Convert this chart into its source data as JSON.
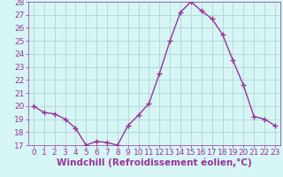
{
  "x": [
    0,
    1,
    2,
    3,
    4,
    5,
    6,
    7,
    8,
    9,
    10,
    11,
    12,
    13,
    14,
    15,
    16,
    17,
    18,
    19,
    20,
    21,
    22,
    23
  ],
  "y": [
    20.0,
    19.5,
    19.4,
    19.0,
    18.3,
    17.0,
    17.3,
    17.2,
    17.0,
    18.5,
    19.3,
    20.2,
    22.5,
    25.0,
    27.2,
    28.0,
    27.3,
    26.7,
    25.5,
    23.5,
    21.6,
    19.2,
    19.0,
    18.5
  ],
  "line_color": "#993399",
  "marker": "+",
  "marker_size": 4,
  "linewidth": 1.0,
  "xlabel": "Windchill (Refroidissement éolien,°C)",
  "ylim": [
    17,
    28
  ],
  "xlim": [
    -0.5,
    23.5
  ],
  "yticks": [
    17,
    18,
    19,
    20,
    21,
    22,
    23,
    24,
    25,
    26,
    27,
    28
  ],
  "xticks": [
    0,
    1,
    2,
    3,
    4,
    5,
    6,
    7,
    8,
    9,
    10,
    11,
    12,
    13,
    14,
    15,
    16,
    17,
    18,
    19,
    20,
    21,
    22,
    23
  ],
  "bg_color": "#d6f5f5",
  "grid_color": "#aacfcf",
  "xlabel_fontsize": 7.5,
  "tick_fontsize": 6.5,
  "line_purple": "#993399"
}
